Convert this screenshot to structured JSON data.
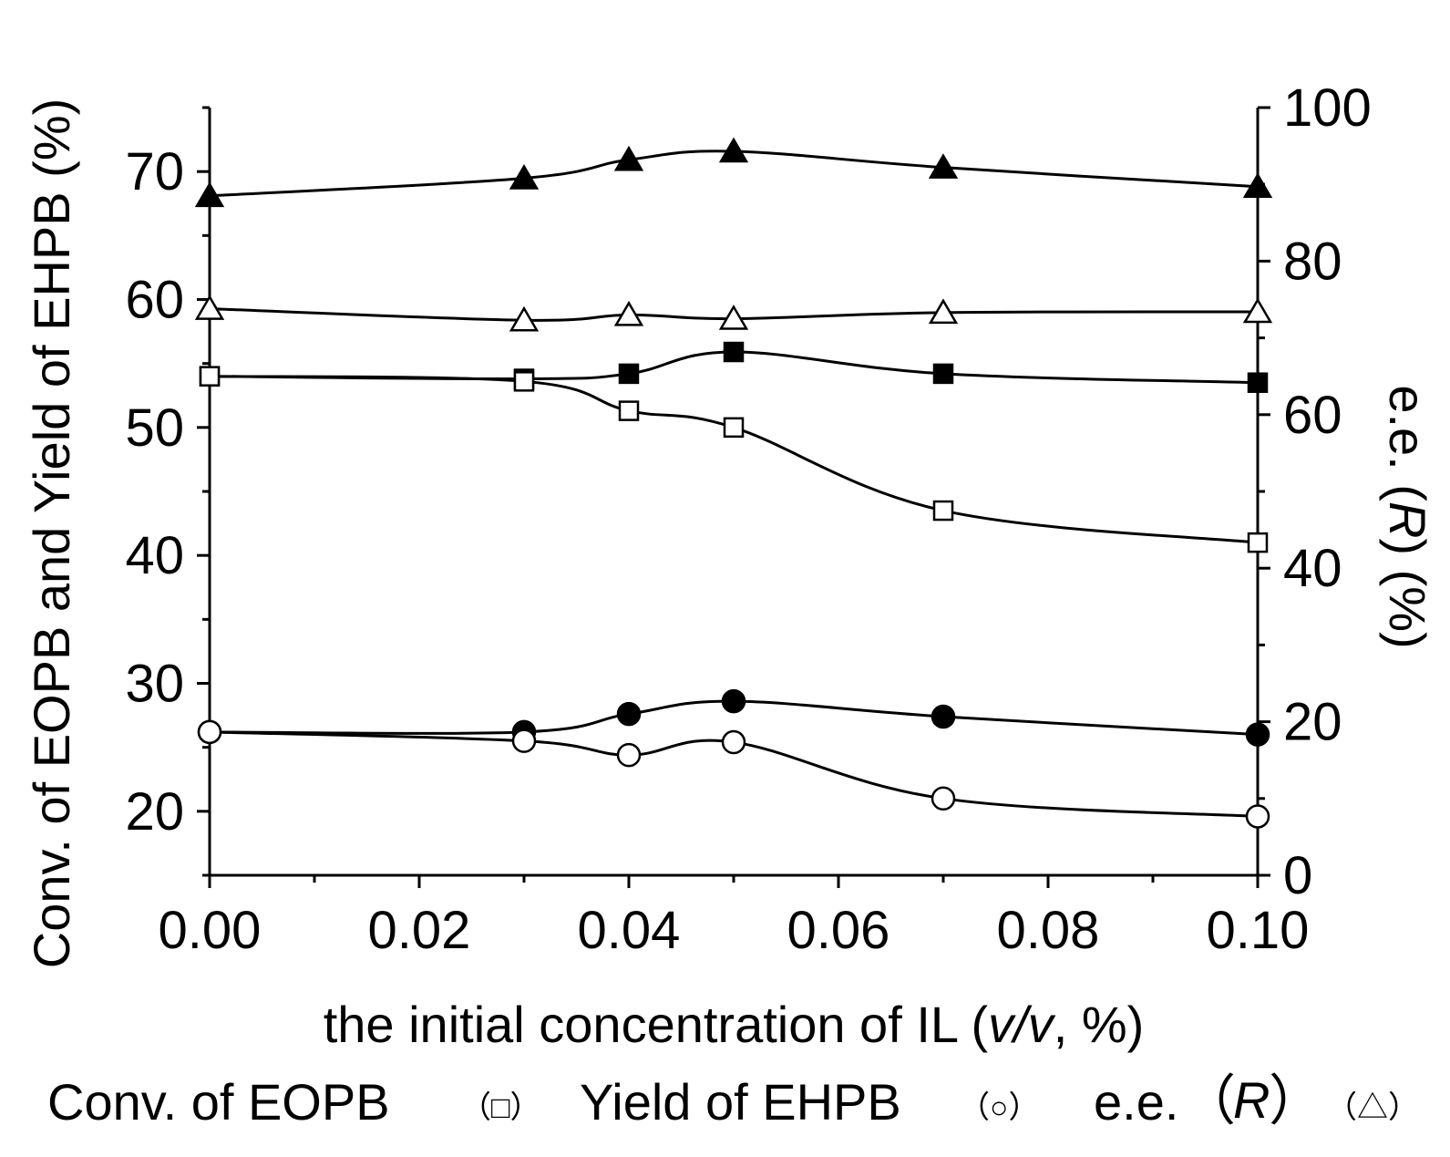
{
  "chart_data": {
    "type": "line",
    "x": [
      0.0,
      0.03,
      0.04,
      0.05,
      0.07,
      0.1
    ],
    "xlabel": {
      "prefix": "the initial concentration of IL (",
      "italic": "v/v",
      "suffix": ", %)"
    },
    "ylabel_left": "Conv. of EOPB and Yield of EHPB (%)",
    "ylabel_right": {
      "prefix": "e.e. (",
      "italic": "R",
      "suffix": ") (%)"
    },
    "xlim": [
      0.0,
      0.1
    ],
    "ylim_left": [
      15,
      75
    ],
    "ylim_right": [
      0,
      100
    ],
    "x_ticks": [
      "0.00",
      "0.02",
      "0.04",
      "0.06",
      "0.08",
      "0.10"
    ],
    "y_left_ticks": [
      "20",
      "30",
      "40",
      "50",
      "60",
      "70"
    ],
    "y_right_ticks": [
      "0",
      "20",
      "40",
      "60",
      "80",
      "100"
    ],
    "series": [
      {
        "name": "Conv. of EOPB (filled)",
        "axis": "left",
        "marker": "square",
        "filled": true,
        "values": [
          54.0,
          53.8,
          54.2,
          55.9,
          54.2,
          53.5
        ]
      },
      {
        "name": "Conv. of EOPB",
        "axis": "left",
        "marker": "square",
        "filled": false,
        "values": [
          54.0,
          53.6,
          51.3,
          50.0,
          43.5,
          41.0
        ]
      },
      {
        "name": "Yield of EHPB (filled)",
        "axis": "left",
        "marker": "circle",
        "filled": true,
        "values": [
          26.2,
          26.2,
          27.6,
          28.6,
          27.4,
          26.0
        ]
      },
      {
        "name": "Yield of EHPB",
        "axis": "left",
        "marker": "circle",
        "filled": false,
        "values": [
          26.2,
          25.5,
          24.4,
          25.4,
          21.0,
          19.6
        ]
      },
      {
        "name": "e.e. (R) (filled)",
        "axis": "right",
        "marker": "triangle",
        "filled": true,
        "values": [
          88.5,
          90.8,
          93.2,
          94.3,
          92.2,
          89.7
        ]
      },
      {
        "name": "e.e. (R)",
        "axis": "right",
        "marker": "triangle",
        "filled": false,
        "values": [
          73.8,
          72.3,
          73.0,
          72.5,
          73.3,
          73.4
        ]
      }
    ],
    "legend": {
      "conv_label": "Conv. of EOPB",
      "conv_symbol": "（□）",
      "yield_label": "Yield of EHPB",
      "yield_symbol": "（○）",
      "ee_prefix": "e.e.",
      "ee_open": "（",
      "ee_italic": "R",
      "ee_close": "）",
      "ee_symbol": "（△）"
    }
  }
}
